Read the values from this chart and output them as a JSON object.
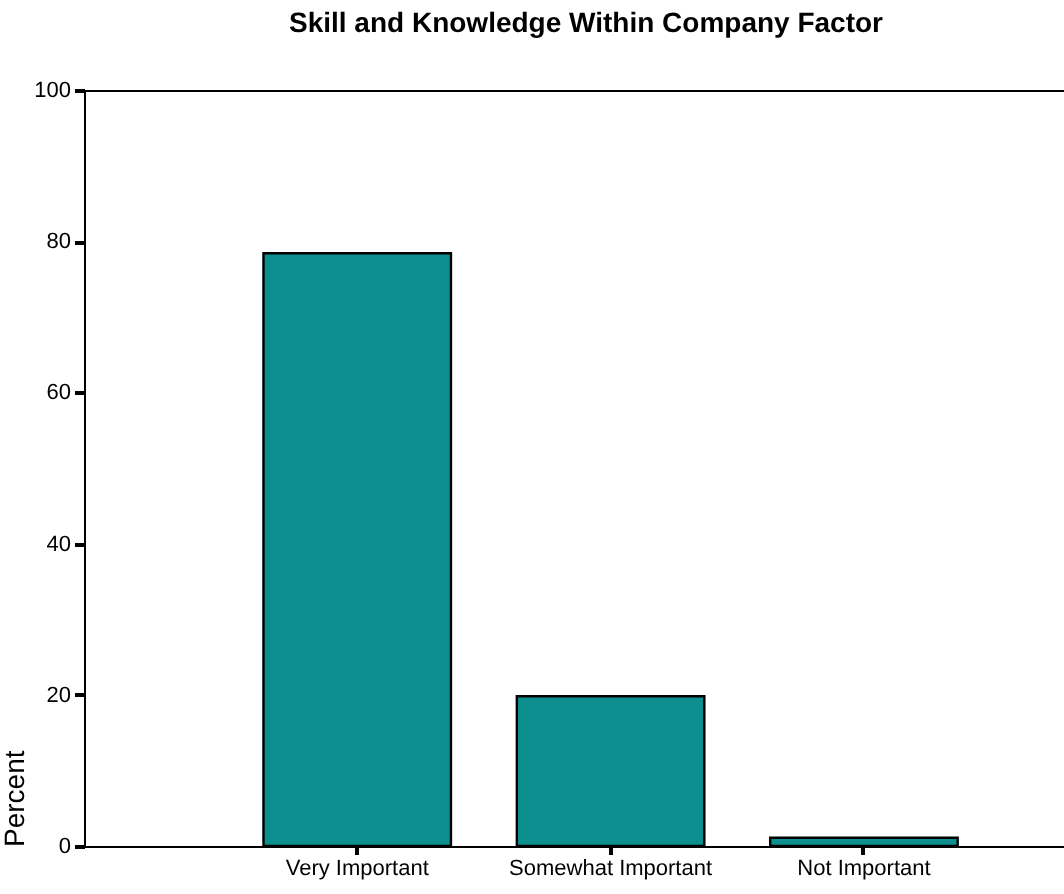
{
  "chart_data": {
    "type": "bar",
    "title": "Skill and Knowledge Within Company Factor",
    "ylabel": "Percent",
    "categories": [
      "Very Important",
      "Somewhat Important",
      "Not Important"
    ],
    "values": [
      78.4,
      19.8,
      1.1
    ],
    "color": "#0e8f8f",
    "ylim": [
      0,
      100
    ],
    "yticks": [
      0,
      20,
      40,
      60,
      80,
      100
    ],
    "grid": false
  }
}
